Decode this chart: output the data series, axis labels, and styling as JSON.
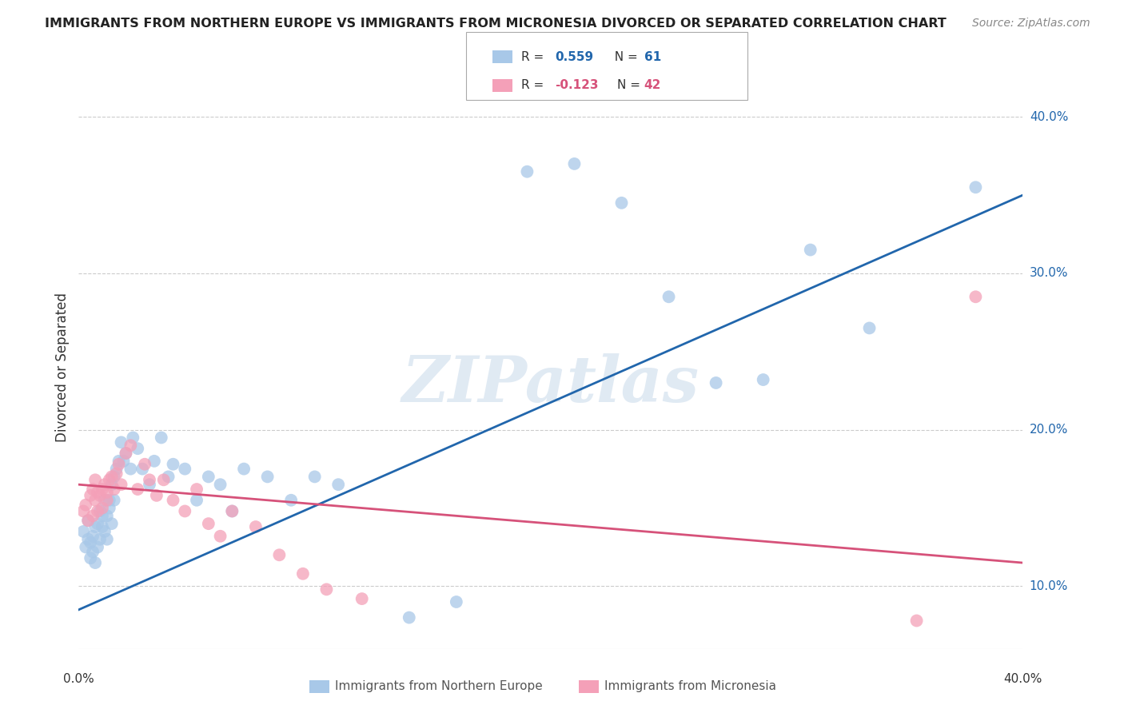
{
  "title": "IMMIGRANTS FROM NORTHERN EUROPE VS IMMIGRANTS FROM MICRONESIA DIVORCED OR SEPARATED CORRELATION CHART",
  "source": "Source: ZipAtlas.com",
  "ylabel": "Divorced or Separated",
  "xlim": [
    0.0,
    0.4
  ],
  "ylim": [
    0.06,
    0.42
  ],
  "yticks": [
    0.1,
    0.2,
    0.3,
    0.4
  ],
  "ytick_labels": [
    "10.0%",
    "20.0%",
    "30.0%",
    "40.0%"
  ],
  "legend_blue_r": "0.559",
  "legend_blue_n": "61",
  "legend_pink_r": "-0.123",
  "legend_pink_n": "42",
  "blue_color": "#a8c8e8",
  "pink_color": "#f4a0b8",
  "blue_line_color": "#2166ac",
  "pink_line_color": "#d6527a",
  "watermark": "ZIPatlas",
  "blue_x": [
    0.002,
    0.003,
    0.004,
    0.004,
    0.005,
    0.005,
    0.006,
    0.006,
    0.007,
    0.007,
    0.008,
    0.008,
    0.009,
    0.009,
    0.01,
    0.01,
    0.011,
    0.011,
    0.012,
    0.012,
    0.013,
    0.013,
    0.014,
    0.014,
    0.015,
    0.015,
    0.016,
    0.017,
    0.018,
    0.019,
    0.02,
    0.022,
    0.023,
    0.025,
    0.027,
    0.03,
    0.032,
    0.035,
    0.038,
    0.04,
    0.045,
    0.05,
    0.055,
    0.06,
    0.065,
    0.07,
    0.08,
    0.09,
    0.1,
    0.11,
    0.14,
    0.16,
    0.19,
    0.21,
    0.23,
    0.25,
    0.27,
    0.29,
    0.31,
    0.335,
    0.38
  ],
  "blue_y": [
    0.135,
    0.125,
    0.13,
    0.142,
    0.118,
    0.128,
    0.122,
    0.132,
    0.138,
    0.115,
    0.125,
    0.14,
    0.13,
    0.148,
    0.138,
    0.145,
    0.135,
    0.155,
    0.13,
    0.145,
    0.155,
    0.15,
    0.14,
    0.165,
    0.155,
    0.17,
    0.175,
    0.18,
    0.192,
    0.18,
    0.185,
    0.175,
    0.195,
    0.188,
    0.175,
    0.165,
    0.18,
    0.195,
    0.17,
    0.178,
    0.175,
    0.155,
    0.17,
    0.165,
    0.148,
    0.175,
    0.17,
    0.155,
    0.17,
    0.165,
    0.08,
    0.09,
    0.365,
    0.37,
    0.345,
    0.285,
    0.23,
    0.232,
    0.315,
    0.265,
    0.355
  ],
  "pink_x": [
    0.002,
    0.003,
    0.004,
    0.005,
    0.006,
    0.006,
    0.007,
    0.007,
    0.008,
    0.008,
    0.009,
    0.01,
    0.01,
    0.011,
    0.012,
    0.012,
    0.013,
    0.014,
    0.015,
    0.016,
    0.017,
    0.018,
    0.02,
    0.022,
    0.025,
    0.028,
    0.03,
    0.033,
    0.036,
    0.04,
    0.045,
    0.05,
    0.055,
    0.06,
    0.065,
    0.075,
    0.085,
    0.095,
    0.105,
    0.12,
    0.355,
    0.38
  ],
  "pink_y": [
    0.148,
    0.152,
    0.142,
    0.158,
    0.145,
    0.162,
    0.155,
    0.168,
    0.148,
    0.16,
    0.158,
    0.15,
    0.162,
    0.165,
    0.155,
    0.16,
    0.168,
    0.17,
    0.162,
    0.172,
    0.178,
    0.165,
    0.185,
    0.19,
    0.162,
    0.178,
    0.168,
    0.158,
    0.168,
    0.155,
    0.148,
    0.162,
    0.14,
    0.132,
    0.148,
    0.138,
    0.12,
    0.108,
    0.098,
    0.092,
    0.078,
    0.285
  ]
}
